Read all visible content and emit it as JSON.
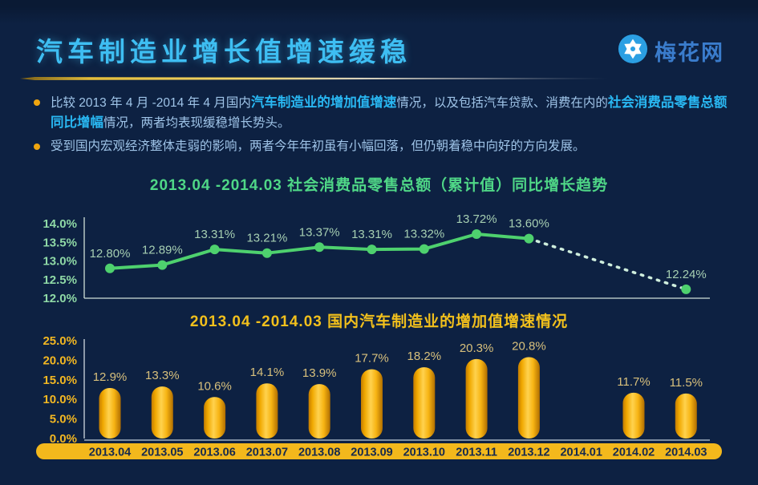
{
  "header": {
    "title": "汽车制造业增长值增速缓稳",
    "logo_text": "梅花网"
  },
  "bullets": [
    {
      "segments": [
        {
          "text": "比较 2013 年 4 月 -2014 年 4 月国内",
          "bold": false
        },
        {
          "text": "汽车制造业的增加值增速",
          "bold": true
        },
        {
          "text": "情况，以及包括汽车贷款、消费在内的",
          "bold": false
        },
        {
          "text": "社会消费品零售总额同比增幅",
          "bold": true
        },
        {
          "text": "情况，两者均表现缓稳增长势头。",
          "bold": false
        }
      ]
    },
    {
      "segments": [
        {
          "text": "受到国内宏观经济整体走弱的影响，两者今年年初虽有小幅回落，但仍朝着稳中向好的方向发展。",
          "bold": false
        }
      ]
    }
  ],
  "chart_data": [
    {
      "type": "line",
      "title": "2013.04 -2014.03 社会消费品零售总额（累计值）同比增长趋势",
      "categories": [
        "2013.04",
        "2013.05",
        "2013.06",
        "2013.07",
        "2013.08",
        "2013.09",
        "2013.10",
        "2013.11",
        "2013.12",
        "2014.01",
        "2014.02",
        "2014.03"
      ],
      "values": [
        12.8,
        12.89,
        13.31,
        13.21,
        13.37,
        13.31,
        13.32,
        13.72,
        13.6,
        null,
        null,
        12.24
      ],
      "labels": [
        "12.80%",
        "12.89%",
        "13.31%",
        "13.21%",
        "13.37%",
        "13.31%",
        "13.32%",
        "13.72%",
        "13.60%",
        "",
        "",
        "12.24%"
      ],
      "ylim": [
        12.0,
        14.0
      ],
      "yticks": [
        "14.0%",
        "13.5%",
        "13.0%",
        "12.5%",
        "12.0%"
      ],
      "solid_through_index": 8,
      "dashed_segment": "2013.12 to 2014.03",
      "legend": "none",
      "grid": false
    },
    {
      "type": "bar",
      "title": "2013.04 -2014.03 国内汽车制造业的增加值增速情况",
      "categories": [
        "2013.04",
        "2013.05",
        "2013.06",
        "2013.07",
        "2013.08",
        "2013.09",
        "2013.10",
        "2013.11",
        "2013.12",
        "2014.01",
        "2014.02",
        "2014.03"
      ],
      "values": [
        12.9,
        13.3,
        10.6,
        14.1,
        13.9,
        17.7,
        18.2,
        20.3,
        20.8,
        null,
        11.7,
        11.5
      ],
      "labels": [
        "12.9%",
        "13.3%",
        "10.6%",
        "14.1%",
        "13.9%",
        "17.7%",
        "18.2%",
        "20.3%",
        "20.8%",
        "",
        "11.7%",
        "11.5%"
      ],
      "ylim": [
        0,
        25
      ],
      "yticks": [
        "25.0%",
        "20.0%",
        "15.0%",
        "10.0%",
        "5.0%",
        "0.0%"
      ],
      "legend": "none",
      "grid": false
    }
  ],
  "colors": {
    "background": "#0d2142",
    "title_cyan": "#3ebef2",
    "logo_blue": "#3a7ccc",
    "logo_circle": "#2b9fe3",
    "bullet_dot": "#efa50f",
    "body_text": "#9fc4e8",
    "body_bold": "#29b7f2",
    "green_title": "#4fd787",
    "line_green": "#4ed16e",
    "line_dashed": "#cfeedd",
    "line_axis_label": "#8fd9a6",
    "point_label": "#a6cfb2",
    "gold_title": "#f2c01c",
    "bar_gold": "#f5b800",
    "bar_axis_label": "#f2b722",
    "bar_value_label": "#d8c07c",
    "strip_gold": "#f3b81c",
    "strip_text": "#15294e"
  }
}
